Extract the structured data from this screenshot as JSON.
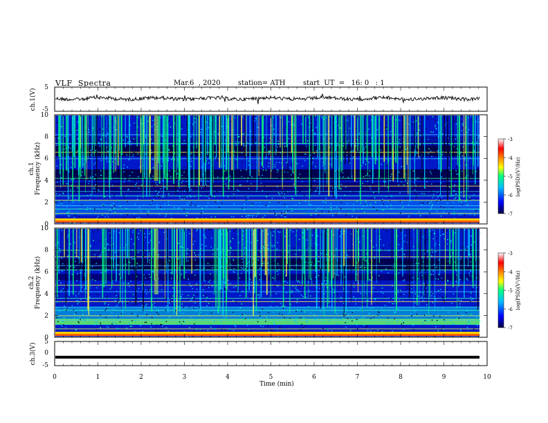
{
  "header": {
    "title": "VLF  Spectra",
    "date": "Mar.6  , 2020",
    "station": "station= ATH",
    "start": "start  UT  =   16: 0   : 1"
  },
  "chart_data": [
    {
      "type": "line",
      "title": "VLF  Spectra",
      "ylabel": "ch.1(V)",
      "ylim": [
        -5,
        5
      ],
      "yticks": [
        "5",
        "-5"
      ],
      "xlim": [
        0,
        10
      ],
      "series": [
        {
          "values_description_only": "noisy waveform centered near 0 V, amplitude about ±1 V"
        }
      ]
    },
    {
      "type": "heatmap",
      "ylabel": "ch.1\nFrequency (kHz)",
      "ylim": [
        0,
        10
      ],
      "yticks": [
        "0",
        "2",
        "4",
        "6",
        "8",
        "10"
      ],
      "xlim": [
        0,
        9.8
      ],
      "colorbar": {
        "label": "log(PSD)(V²/Hz)",
        "range": [
          -7,
          -3
        ],
        "ticks": [
          "-3",
          "-4",
          "-5",
          "-6",
          "-7"
        ]
      }
    },
    {
      "type": "heatmap",
      "ylabel": "ch.2\nFrequency (kHz)",
      "ylim": [
        0,
        10
      ],
      "yticks": [
        "0",
        "2",
        "4",
        "6",
        "8",
        "10"
      ],
      "xlim": [
        0,
        9.8
      ],
      "colorbar": {
        "label": "log(PSD)(V²/Hz)",
        "range": [
          -7,
          -3
        ],
        "ticks": [
          "-3",
          "-4",
          "-5",
          "-6",
          "-7"
        ]
      }
    },
    {
      "type": "line",
      "ylabel": "ch.3(V)",
      "ylim": [
        -5,
        5
      ],
      "yticks": [
        "5",
        "0",
        "-5"
      ],
      "xlim": [
        0,
        10
      ],
      "xlabel": "Time  (min)",
      "xticks": [
        "0",
        "1",
        "2",
        "3",
        "4",
        "5",
        "6",
        "7",
        "8",
        "9",
        "10"
      ],
      "series": [
        {
          "constant_value": -1.5
        }
      ]
    }
  ],
  "labels": {
    "ch1": "ch.1(V)",
    "ch2_a": "ch.1",
    "ch2_b": "Frequency (kHz)",
    "ch3_a": "ch.2",
    "ch3_b": "Frequency (kHz)",
    "ch4": "ch.3(V)",
    "xlabel": "Time  (min)",
    "cbar": "log(PSD)(V²/Hz)"
  },
  "colors": {
    "waveform": "#111111",
    "colormap": [
      "#000040",
      "#0000ff",
      "#00c0ff",
      "#00ff80",
      "#ffff00",
      "#ff8000",
      "#ff0000",
      "#ffffff"
    ]
  }
}
